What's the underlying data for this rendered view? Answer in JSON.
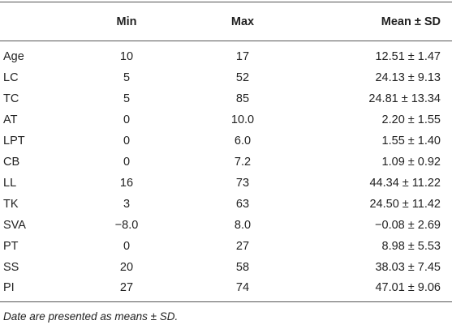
{
  "table": {
    "headers": {
      "parameter": "",
      "min": "Min",
      "max": "Max",
      "mean": "Mean ± SD"
    },
    "rows": [
      {
        "parameter": "Age",
        "min": "10",
        "max": "17",
        "mean": "12.51 ± 1.47"
      },
      {
        "parameter": "LC",
        "min": "5",
        "max": "52",
        "mean": "24.13 ± 9.13"
      },
      {
        "parameter": "TC",
        "min": "5",
        "max": "85",
        "mean": "24.81 ± 13.34"
      },
      {
        "parameter": "AT",
        "min": "0",
        "max": "10.0",
        "mean": "2.20 ± 1.55"
      },
      {
        "parameter": "LPT",
        "min": "0",
        "max": "6.0",
        "mean": "1.55 ± 1.40"
      },
      {
        "parameter": "CB",
        "min": "0",
        "max": "7.2",
        "mean": "1.09 ± 0.92"
      },
      {
        "parameter": "LL",
        "min": "16",
        "max": "73",
        "mean": "44.34 ± 11.22"
      },
      {
        "parameter": "TK",
        "min": "3",
        "max": "63",
        "mean": "24.50 ± 11.42"
      },
      {
        "parameter": "SVA",
        "min": "−8.0",
        "max": "8.0",
        "mean": "−0.08 ± 2.69"
      },
      {
        "parameter": "PT",
        "min": "0",
        "max": "27",
        "mean": "8.98 ± 5.53"
      },
      {
        "parameter": "SS",
        "min": "20",
        "max": "58",
        "mean": "38.03 ± 7.45"
      },
      {
        "parameter": "PI",
        "min": "27",
        "max": "74",
        "mean": "47.01 ± 9.06"
      }
    ]
  },
  "footnote": "Date are presented as means ± SD."
}
